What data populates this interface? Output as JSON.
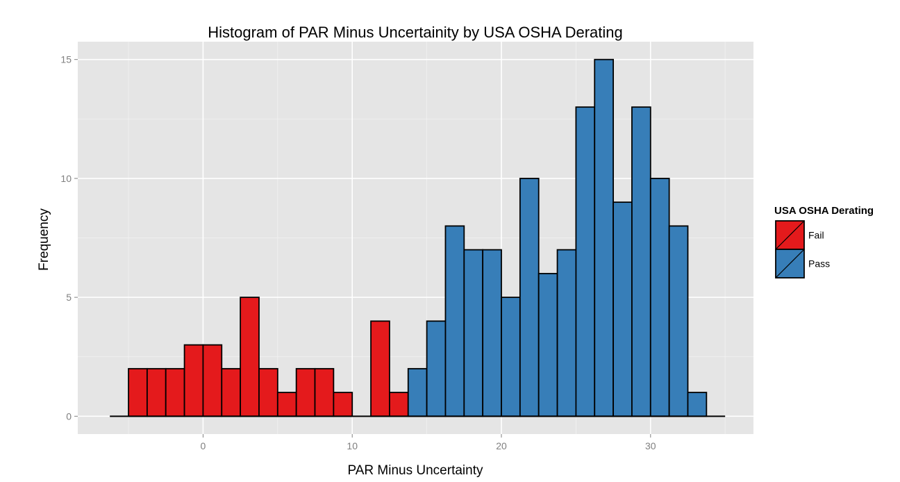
{
  "chart_data": {
    "type": "bar",
    "title": "Histogram of PAR Minus Uncertainity by USA OSHA Derating",
    "xlabel": "PAR Minus Uncertainty",
    "ylabel": "Frequency",
    "xlim": [
      -8.4,
      36.9
    ],
    "ylim": [
      -0.75,
      15.75
    ],
    "xticks": [
      0,
      10,
      20,
      30
    ],
    "yticks": [
      0,
      5,
      10,
      15
    ],
    "grid": true,
    "legend": {
      "title": "USA OSHA Derating",
      "position": "right"
    },
    "bin_width": 1.25,
    "series": [
      {
        "name": "Fail",
        "color": "#e41a1c",
        "bins": [
          {
            "x0": -5.0,
            "count": 2
          },
          {
            "x0": -3.75,
            "count": 2
          },
          {
            "x0": -2.5,
            "count": 2
          },
          {
            "x0": -1.25,
            "count": 3
          },
          {
            "x0": 0.0,
            "count": 3
          },
          {
            "x0": 1.25,
            "count": 2
          },
          {
            "x0": 2.5,
            "count": 5
          },
          {
            "x0": 3.75,
            "count": 2
          },
          {
            "x0": 5.0,
            "count": 1
          },
          {
            "x0": 6.25,
            "count": 2
          },
          {
            "x0": 7.5,
            "count": 2
          },
          {
            "x0": 8.75,
            "count": 1
          },
          {
            "x0": 10.0,
            "count": 0
          },
          {
            "x0": 11.25,
            "count": 4
          },
          {
            "x0": 12.5,
            "count": 1
          }
        ]
      },
      {
        "name": "Pass",
        "color": "#377eb8",
        "bins": [
          {
            "x0": 13.75,
            "count": 2
          },
          {
            "x0": 15.0,
            "count": 4
          },
          {
            "x0": 16.25,
            "count": 8
          },
          {
            "x0": 17.5,
            "count": 7
          },
          {
            "x0": 18.75,
            "count": 7
          },
          {
            "x0": 20.0,
            "count": 5
          },
          {
            "x0": 21.25,
            "count": 10
          },
          {
            "x0": 22.5,
            "count": 6
          },
          {
            "x0": 23.75,
            "count": 7
          },
          {
            "x0": 25.0,
            "count": 13
          },
          {
            "x0": 26.25,
            "count": 15
          },
          {
            "x0": 27.5,
            "count": 9
          },
          {
            "x0": 28.75,
            "count": 13
          },
          {
            "x0": 30.0,
            "count": 10
          },
          {
            "x0": 31.25,
            "count": 8
          },
          {
            "x0": 32.5,
            "count": 1
          }
        ]
      }
    ],
    "baseline": [
      -6.25,
      35.0
    ]
  }
}
